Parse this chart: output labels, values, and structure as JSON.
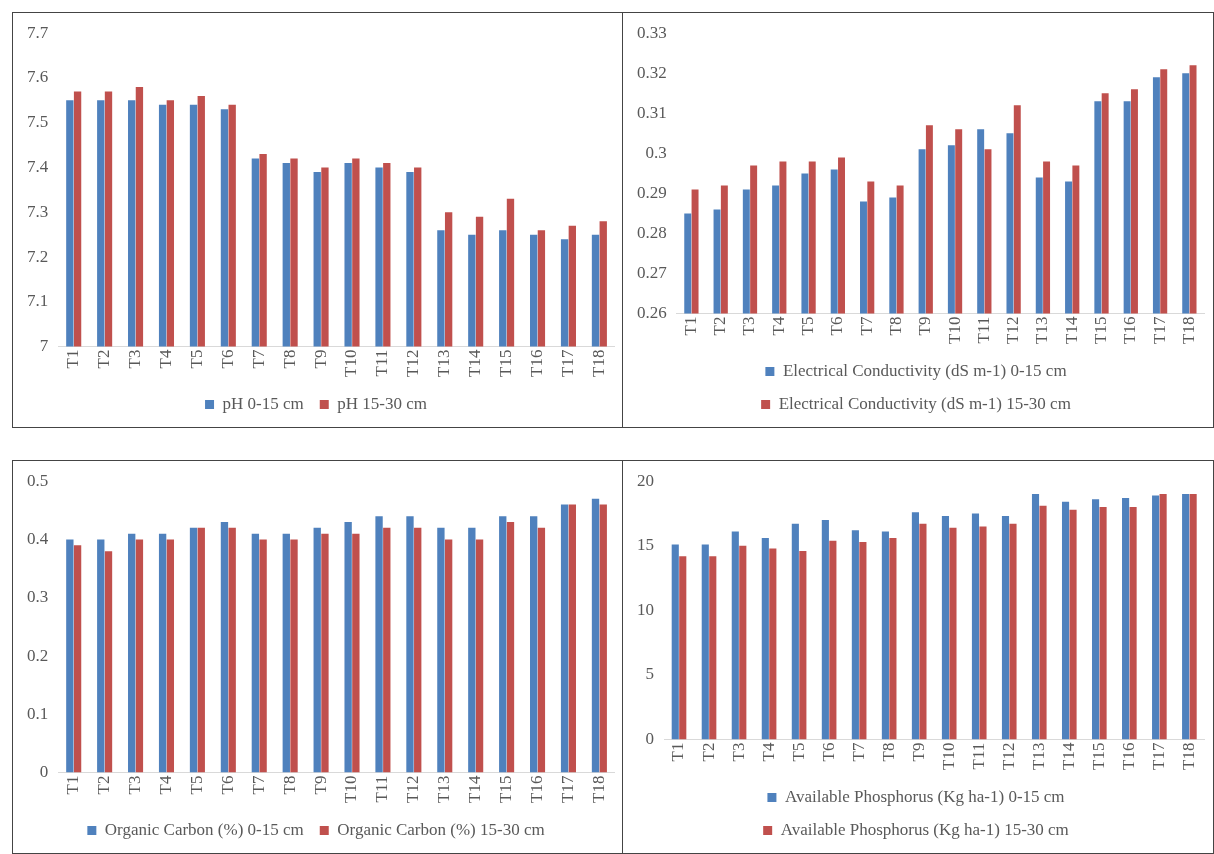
{
  "chart_data": [
    {
      "type": "bar",
      "categories": [
        "T1",
        "T2",
        "T3",
        "T4",
        "T5",
        "T6",
        "T7",
        "T8",
        "T9",
        "T10",
        "T11",
        "T12",
        "T13",
        "T14",
        "T15",
        "T16",
        "T17",
        "T18"
      ],
      "series": [
        {
          "name": "pH 0-15 cm",
          "color": "#4f81bd",
          "values": [
            7.55,
            7.55,
            7.55,
            7.54,
            7.54,
            7.53,
            7.42,
            7.41,
            7.39,
            7.41,
            7.4,
            7.39,
            7.26,
            7.25,
            7.26,
            7.25,
            7.24,
            7.25
          ]
        },
        {
          "name": "pH 15-30 cm",
          "color": "#c0504d",
          "values": [
            7.57,
            7.57,
            7.58,
            7.55,
            7.56,
            7.54,
            7.43,
            7.42,
            7.4,
            7.42,
            7.41,
            7.4,
            7.3,
            7.29,
            7.33,
            7.26,
            7.27,
            7.28
          ]
        }
      ],
      "ylim": [
        7,
        7.7
      ],
      "yticks": [
        7,
        7.1,
        7.2,
        7.3,
        7.4,
        7.5,
        7.6,
        7.7
      ],
      "grid": false,
      "legend": "bottom"
    },
    {
      "type": "bar",
      "categories": [
        "T1",
        "T2",
        "T3",
        "T4",
        "T5",
        "T6",
        "T7",
        "T8",
        "T9",
        "T10",
        "T11",
        "T12",
        "T13",
        "T14",
        "T15",
        "T16",
        "T17",
        "T18"
      ],
      "series": [
        {
          "name": "Electrical Conductivity (dS m-1) 0-15 cm",
          "color": "#4f81bd",
          "values": [
            0.285,
            0.286,
            0.291,
            0.292,
            0.295,
            0.296,
            0.288,
            0.289,
            0.301,
            0.302,
            0.306,
            0.305,
            0.294,
            0.293,
            0.313,
            0.313,
            0.319,
            0.32
          ]
        },
        {
          "name": "Electrical Conductivity (dS m-1) 15-30 cm",
          "color": "#c0504d",
          "values": [
            0.291,
            0.292,
            0.297,
            0.298,
            0.298,
            0.299,
            0.293,
            0.292,
            0.307,
            0.306,
            0.301,
            0.312,
            0.298,
            0.297,
            0.315,
            0.316,
            0.321,
            0.322
          ]
        }
      ],
      "ylim": [
        0.26,
        0.33
      ],
      "yticks": [
        0.26,
        0.27,
        0.28,
        0.29,
        0.3,
        0.31,
        0.32,
        0.33
      ],
      "grid": false,
      "legend": "bottom"
    },
    {
      "type": "bar",
      "categories": [
        "T1",
        "T2",
        "T3",
        "T4",
        "T5",
        "T6",
        "T7",
        "T8",
        "T9",
        "T10",
        "T11",
        "T12",
        "T13",
        "T14",
        "T15",
        "T16",
        "T17",
        "T18"
      ],
      "series": [
        {
          "name": "Organic Carbon (%) 0-15 cm",
          "color": "#4f81bd",
          "values": [
            0.4,
            0.4,
            0.41,
            0.41,
            0.42,
            0.43,
            0.41,
            0.41,
            0.42,
            0.43,
            0.44,
            0.44,
            0.42,
            0.42,
            0.44,
            0.44,
            0.46,
            0.47
          ]
        },
        {
          "name": "Organic Carbon (%) 15-30 cm",
          "color": "#c0504d",
          "values": [
            0.39,
            0.38,
            0.4,
            0.4,
            0.42,
            0.42,
            0.4,
            0.4,
            0.41,
            0.41,
            0.42,
            0.42,
            0.4,
            0.4,
            0.43,
            0.42,
            0.46,
            0.46
          ]
        }
      ],
      "ylim": [
        0,
        0.5
      ],
      "yticks": [
        0,
        0.1,
        0.2,
        0.3,
        0.4,
        0.5
      ],
      "grid": false,
      "legend": "bottom"
    },
    {
      "type": "bar",
      "categories": [
        "T1",
        "T2",
        "T3",
        "T4",
        "T5",
        "T6",
        "T7",
        "T8",
        "T9",
        "T10",
        "T11",
        "T12",
        "T13",
        "T14",
        "T15",
        "T16",
        "T17",
        "T18"
      ],
      "series": [
        {
          "name": "Available Phosphorus (Kg ha-1) 0-15 cm",
          "color": "#4f81bd",
          "values": [
            15.1,
            15.1,
            16.1,
            15.6,
            16.7,
            17.0,
            16.2,
            16.1,
            17.6,
            17.3,
            17.5,
            17.3,
            19.0,
            18.4,
            18.6,
            18.7,
            18.9,
            19.0
          ]
        },
        {
          "name": "Available Phosphorus (Kg ha-1) 15-30 cm",
          "color": "#c0504d",
          "values": [
            14.2,
            14.2,
            15.0,
            14.8,
            14.6,
            15.4,
            15.3,
            15.6,
            16.7,
            16.4,
            16.5,
            16.7,
            18.1,
            17.8,
            18.0,
            18.0,
            19.0,
            19.0
          ]
        }
      ],
      "ylim": [
        0,
        20
      ],
      "yticks": [
        0,
        5,
        10,
        15,
        20
      ],
      "grid": false,
      "legend": "bottom"
    }
  ]
}
